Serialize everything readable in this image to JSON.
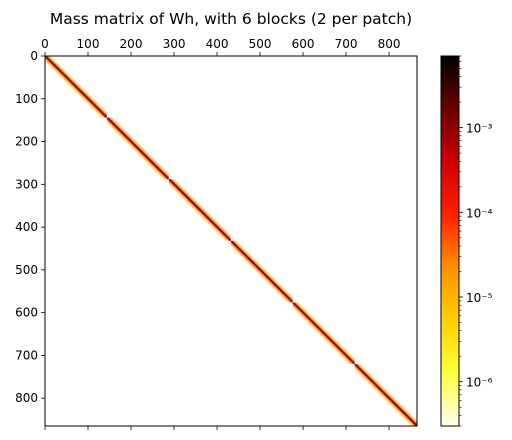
{
  "chart_data": {
    "type": "heatmap",
    "title": "Mass matrix of Wh, with 6 blocks (2 per patch)",
    "xlabel": "",
    "ylabel": "",
    "matrix_size": 865,
    "xlim": [
      0,
      865
    ],
    "ylim": [
      865,
      0
    ],
    "x_ticks": [
      0,
      100,
      200,
      300,
      400,
      500,
      600,
      700,
      800
    ],
    "y_ticks": [
      0,
      100,
      200,
      300,
      400,
      500,
      600,
      700,
      800
    ],
    "x_axis_position": "top",
    "grid": false,
    "blocks": [
      {
        "start": 0,
        "end": 144
      },
      {
        "start": 144,
        "end": 288
      },
      {
        "start": 288,
        "end": 432
      },
      {
        "start": 432,
        "end": 576
      },
      {
        "start": 576,
        "end": 720
      },
      {
        "start": 720,
        "end": 865
      }
    ],
    "band_half_width": 13,
    "colormap": "hot_r",
    "colorbar": {
      "scale": "log",
      "range": [
        3e-07,
        0.007
      ],
      "ticks": [
        {
          "value": 1e-06,
          "label": "10⁻⁶"
        },
        {
          "value": 1e-05,
          "label": "10⁻⁵"
        },
        {
          "value": 0.0001,
          "label": "10⁻⁴"
        },
        {
          "value": 0.001,
          "label": "10⁻³"
        }
      ],
      "colors": [
        "#fffff0",
        "#ffff40",
        "#ffd000",
        "#ff9000",
        "#ff2000",
        "#d00000",
        "#6a0000",
        "#000000"
      ]
    }
  }
}
